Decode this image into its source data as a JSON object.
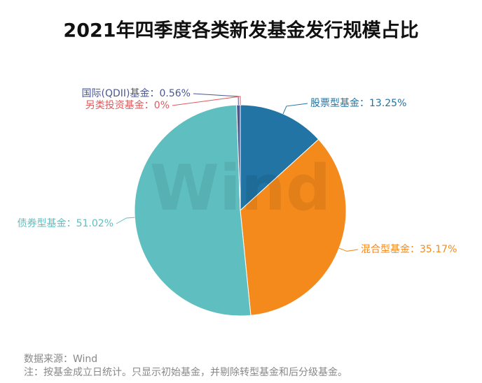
{
  "chart_data": {
    "type": "pie",
    "title": "2021年四季度各类新发基金发行规模占比",
    "categories": [
      "股票型基金",
      "混合型基金",
      "债券型基金",
      "国际(QDII)基金",
      "另类投资基金"
    ],
    "values": [
      13.25,
      35.17,
      51.02,
      0.56,
      0
    ],
    "value_labels": [
      "股票型基金：13.25%",
      "混合型基金：35.17%",
      "债券型基金：51.02%",
      "国际(QDII)基金：0.56%",
      "另类投资基金：0%"
    ],
    "colors": [
      "#2274a5",
      "#f58a1c",
      "#5fbfc0",
      "#4a5793",
      "#e05a5e"
    ],
    "watermark": "Wind",
    "source": "数据来源：Wind",
    "note": "注：按基金成立日统计。只显示初始基金，并剔除转型基金和后分级基金。"
  }
}
